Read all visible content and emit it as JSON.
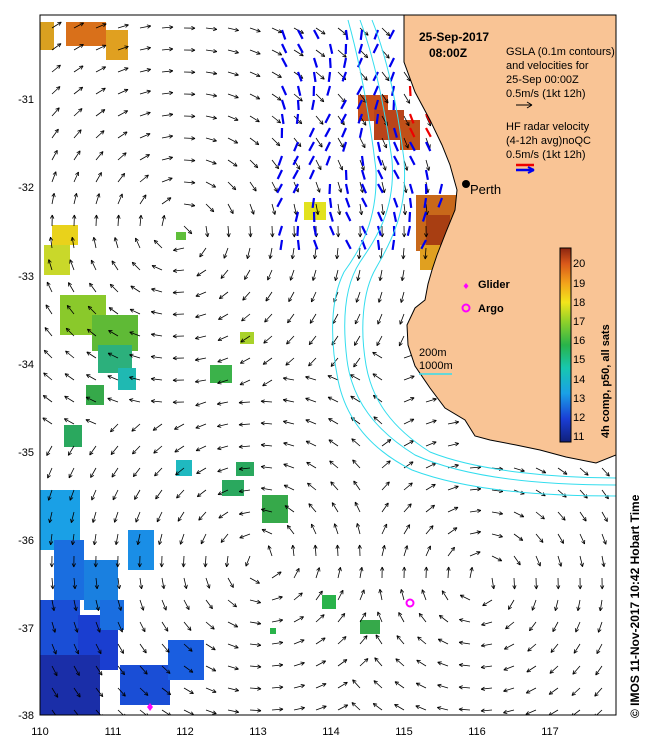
{
  "map": {
    "title_date": "25-Sep-2017",
    "title_time": "08:00Z",
    "legend": {
      "gsla_line1": "GSLA (0.1m contours)",
      "gsla_line2": "and velocities for",
      "gsla_line3": "25-Sep 00:00Z",
      "gsla_scale": "0.5m/s (1kt 12h)",
      "hf_line1": "HF radar velocity",
      "hf_line2": "(4-12h avg)noQC",
      "hf_scale": "0.5m/s (1kt 12h)",
      "glider": "Glider",
      "argo": "Argo",
      "contour_200": "200m",
      "contour_1000": "1000m"
    },
    "city": "Perth",
    "colorbar": {
      "label": "4h comp, p50, all sats",
      "ticks": [
        "11",
        "12",
        "13",
        "14",
        "15",
        "16",
        "17",
        "18",
        "19",
        "20"
      ],
      "range": [
        10.6,
        20.6
      ]
    },
    "credit": "© IMOS 11-Nov-2017 10:42 Hobart Time",
    "colors": {
      "land": "#f9c495",
      "coast_line": "#000000",
      "bathy": "#33ddee",
      "hf_blue": "#0000ee",
      "hf_red": "#ee0000",
      "glider_argo": "#ff00ff"
    }
  },
  "axes": {
    "x_ticks": [
      "110",
      "111",
      "112",
      "113",
      "114",
      "115",
      "116",
      "117"
    ],
    "y_ticks": [
      "-31",
      "-32",
      "-33",
      "-34",
      "-35",
      "-36",
      "-37",
      "-38"
    ],
    "lon_range": [
      110,
      117.9
    ],
    "lat_range": [
      -38,
      -30.2
    ]
  },
  "observations": {
    "perth": {
      "lon": 115.86,
      "lat": -31.95
    },
    "glider": [
      {
        "lon": 111.55,
        "lat": -37.9
      }
    ],
    "argo": [
      {
        "lon": 115.05,
        "lat": -36.75
      }
    ]
  }
}
